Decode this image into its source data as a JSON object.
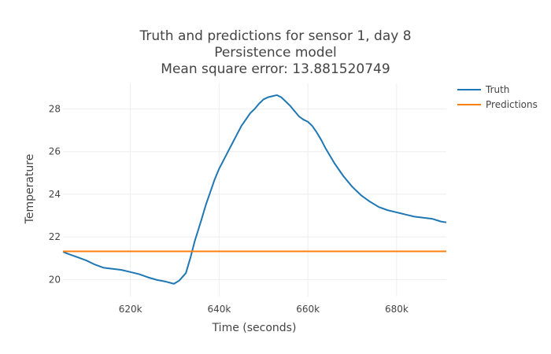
{
  "chart_data": {
    "type": "line",
    "title_lines": [
      "Truth and predictions for sensor 1, day 8",
      "Persistence model",
      "Mean square error: 13.881520749"
    ],
    "xlabel": "Time (seconds)",
    "ylabel": "Temperature",
    "xlim": [
      604800,
      691200
    ],
    "ylim": [
      19.2,
      29.2
    ],
    "x_ticks": [
      620000,
      640000,
      660000,
      680000
    ],
    "x_tick_labels": [
      "620k",
      "640k",
      "660k",
      "680k"
    ],
    "y_ticks": [
      20,
      22,
      24,
      26,
      28
    ],
    "y_tick_labels": [
      "20",
      "22",
      "24",
      "26",
      "28"
    ],
    "grid": true,
    "legend_position": "top-right",
    "series": [
      {
        "name": "Truth",
        "color": "#1f77b4",
        "x": [
          604800,
          606000,
          608000,
          610000,
          612000,
          614000,
          616000,
          618000,
          620000,
          622000,
          624000,
          626000,
          628000,
          629800,
          631000,
          632500,
          633500,
          634500,
          636000,
          637000,
          638000,
          639000,
          640000,
          641000,
          642000,
          643000,
          644000,
          645000,
          646000,
          647000,
          648000,
          649000,
          650000,
          651000,
          652000,
          653000,
          654000,
          655000,
          656000,
          657000,
          658000,
          659000,
          660000,
          661000,
          662000,
          663000,
          664000,
          665000,
          666000,
          667000,
          668000,
          670000,
          672000,
          674000,
          676000,
          678000,
          680000,
          682000,
          684000,
          686000,
          688000,
          690000,
          691200
        ],
        "y": [
          21.3,
          21.2,
          21.05,
          20.9,
          20.7,
          20.55,
          20.5,
          20.45,
          20.35,
          20.25,
          20.1,
          19.98,
          19.9,
          19.8,
          19.95,
          20.3,
          21.0,
          21.8,
          22.8,
          23.5,
          24.1,
          24.7,
          25.2,
          25.6,
          26.0,
          26.4,
          26.8,
          27.2,
          27.5,
          27.8,
          28.0,
          28.25,
          28.45,
          28.55,
          28.6,
          28.65,
          28.55,
          28.35,
          28.15,
          27.9,
          27.65,
          27.5,
          27.4,
          27.2,
          26.9,
          26.55,
          26.15,
          25.8,
          25.45,
          25.15,
          24.85,
          24.35,
          23.95,
          23.65,
          23.4,
          23.25,
          23.15,
          23.05,
          22.95,
          22.9,
          22.85,
          22.72,
          22.68
        ]
      },
      {
        "name": "Predictions",
        "color": "#ff7f0e",
        "x": [
          604800,
          691200
        ],
        "y": [
          21.32,
          21.32
        ]
      }
    ]
  }
}
